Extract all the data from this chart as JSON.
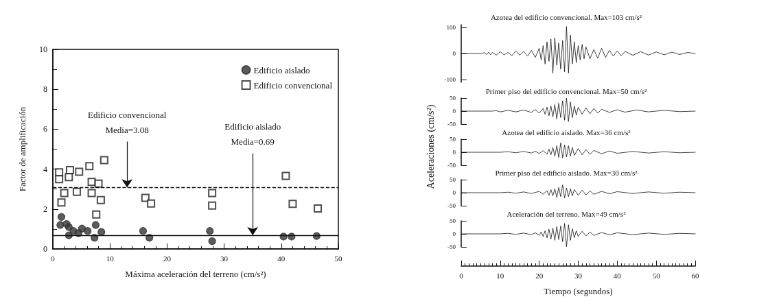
{
  "chart_data": [
    {
      "type": "scatter",
      "xlabel": "Máxima aceleración del terreno (cm/s²)",
      "ylabel": "Factor de amplificación",
      "xlim": [
        0,
        50
      ],
      "xticks": [
        0,
        10,
        20,
        30,
        40,
        50
      ],
      "ylim": [
        0,
        10
      ],
      "yticks": [
        0,
        2,
        4,
        6,
        8,
        10
      ],
      "grid": false,
      "legend": "top right",
      "series": [
        {
          "name": "Edificio aislado",
          "color": "#333333",
          "marker": "circle",
          "x": [
            1.5,
            1.3,
            2.8,
            3.6,
            2.8,
            4.5,
            5.1,
            6.1,
            7.5,
            7.3,
            8.5,
            2.4,
            15.8,
            16.9,
            27.5,
            27.9,
            40.4,
            41.8,
            46.2
          ],
          "values": [
            1.6,
            1.2,
            1.1,
            0.9,
            0.68,
            0.79,
            1.02,
            0.9,
            1.2,
            0.56,
            0.85,
            1.25,
            0.9,
            0.56,
            0.9,
            0.39,
            0.62,
            0.62,
            0.65
          ]
        },
        {
          "name": "Edificio convencional",
          "color": "#222222",
          "marker": "square",
          "x": [
            1.1,
            1.1,
            3.0,
            4.6,
            6.4,
            9.0,
            2.8,
            6.8,
            8.0,
            2.0,
            4.2,
            6.8,
            1.5,
            8.4,
            7.6,
            16.2,
            17.2,
            27.9,
            27.9,
            40.8,
            42.0,
            46.4
          ],
          "values": [
            3.84,
            3.5,
            3.95,
            3.87,
            4.15,
            4.45,
            3.6,
            3.36,
            3.27,
            2.8,
            2.86,
            2.8,
            2.33,
            2.45,
            1.73,
            2.56,
            2.28,
            2.8,
            2.17,
            3.66,
            2.26,
            2.03
          ]
        }
      ],
      "ref_lines": [
        {
          "axis": "y",
          "value": 3.08,
          "line_style": "dashed"
        },
        {
          "axis": "y",
          "value": 0.69,
          "line_style": "solid"
        }
      ],
      "annotations": [
        {
          "text": "Edificio convencional\nMedia=3.08",
          "x": 13,
          "y": 3.08
        },
        {
          "text": "Edificio aislado\nMedia=0.69",
          "x": 35,
          "y": 0.69
        }
      ]
    },
    {
      "type": "line",
      "title": "Azotea del edificio convencional. Max=103 cm/s²",
      "xlim": [
        0,
        60
      ],
      "xticks": [
        0,
        10,
        20,
        30,
        40,
        50,
        60
      ],
      "ylim": [
        -110,
        110
      ],
      "yticks": [
        -100,
        0,
        100
      ],
      "tick_labels": "y",
      "line_style": "solid",
      "marker": "none",
      "grid": false,
      "series": [
        {
          "color": "#111111",
          "x": [
            0,
            5,
            6,
            6.5,
            7,
            7.5,
            8,
            9,
            10,
            11,
            12,
            13,
            14,
            15,
            16,
            17,
            18,
            19,
            20,
            20.5,
            21,
            21.5,
            22,
            22.5,
            23,
            23.5,
            24,
            24.5,
            25,
            25.5,
            26,
            26.5,
            27,
            27.5,
            28,
            28.5,
            29,
            29.5,
            30,
            30.5,
            31,
            31.5,
            32,
            33,
            34,
            35,
            36,
            37,
            38,
            39,
            40,
            41,
            42,
            44,
            46,
            48,
            50,
            52,
            54,
            56,
            58,
            60
          ],
          "values": [
            0,
            0,
            3,
            -4,
            5,
            -5,
            4,
            -6,
            7,
            -5,
            4,
            -8,
            10,
            -6,
            8,
            -10,
            12,
            -15,
            20,
            -25,
            30,
            -40,
            45,
            -30,
            55,
            -75,
            60,
            -45,
            40,
            -60,
            50,
            -70,
            103,
            -75,
            70,
            -40,
            45,
            -35,
            30,
            -25,
            35,
            -20,
            25,
            -20,
            15,
            -18,
            20,
            -15,
            12,
            -10,
            10,
            -8,
            8,
            -7,
            7,
            -6,
            6,
            -5,
            5,
            -4,
            4,
            0
          ]
        }
      ]
    },
    {
      "type": "line",
      "title": "Primer piso del edificio convencional. Max=50 cm/s²",
      "xlim": [
        0,
        60
      ],
      "xticks": [
        0,
        10,
        20,
        30,
        40,
        50,
        60
      ],
      "ylim": [
        -50,
        50
      ],
      "yticks": [
        -50,
        0,
        50
      ],
      "tick_labels": "y",
      "line_style": "solid",
      "marker": "none",
      "grid": false,
      "series": [
        {
          "color": "#111111",
          "x": [
            0,
            8,
            9,
            10,
            12,
            14,
            16,
            18,
            19,
            20,
            21,
            21.5,
            22,
            22.5,
            23,
            23.5,
            24,
            24.5,
            25,
            25.5,
            26,
            26.5,
            27,
            27.5,
            28,
            28.5,
            29,
            29.5,
            30,
            31,
            32,
            33,
            34,
            35,
            36,
            38,
            40,
            42,
            45,
            48,
            52,
            56,
            60
          ],
          "values": [
            0,
            0,
            2,
            -3,
            3,
            -3,
            4,
            -5,
            6,
            -8,
            10,
            -12,
            15,
            -18,
            20,
            -22,
            25,
            -30,
            30,
            -25,
            40,
            -35,
            50,
            -40,
            35,
            -25,
            20,
            -15,
            15,
            -12,
            12,
            -10,
            10,
            -8,
            7,
            -5,
            5,
            -4,
            4,
            -3,
            3,
            -2,
            0
          ]
        }
      ]
    },
    {
      "type": "line",
      "title": "Azotea del edificio aislado. Max=36 cm/s²",
      "ylabel": "Aceleraciones (cm/s²)",
      "xlim": [
        0,
        60
      ],
      "xticks": [
        0,
        10,
        20,
        30,
        40,
        50,
        60
      ],
      "ylim": [
        -50,
        50
      ],
      "yticks": [
        -50,
        0,
        50
      ],
      "tick_labels": "y",
      "line_style": "solid",
      "marker": "none",
      "grid": false,
      "series": [
        {
          "color": "#111111",
          "x": [
            0,
            10,
            12,
            14,
            16,
            18,
            19,
            20,
            21,
            22,
            22.5,
            23,
            23.5,
            24,
            24.5,
            25,
            25.5,
            26,
            26.5,
            27,
            27.5,
            28,
            28.5,
            29,
            30,
            31,
            32,
            33,
            34,
            36,
            38,
            40,
            44,
            48,
            52,
            56,
            60
          ],
          "values": [
            0,
            0,
            2,
            -2,
            3,
            -3,
            4,
            -5,
            6,
            -8,
            12,
            -10,
            18,
            -15,
            25,
            -20,
            36,
            -22,
            28,
            -18,
            25,
            -15,
            18,
            -12,
            14,
            -10,
            10,
            -8,
            7,
            -6,
            5,
            -4,
            3,
            -3,
            2,
            -2,
            0
          ]
        }
      ]
    },
    {
      "type": "line",
      "title": "Primer piso del edificio aislado. Max=30 cm/s²",
      "xlim": [
        0,
        60
      ],
      "xticks": [
        0,
        10,
        20,
        30,
        40,
        50,
        60
      ],
      "ylim": [
        -50,
        50
      ],
      "yticks": [
        -50,
        0,
        50
      ],
      "tick_labels": "y",
      "line_style": "solid",
      "marker": "none",
      "grid": false,
      "series": [
        {
          "color": "#111111",
          "x": [
            0,
            10,
            12,
            14,
            16,
            18,
            20,
            21,
            22,
            22.5,
            23,
            23.5,
            24,
            24.5,
            25,
            25.5,
            26,
            26.5,
            27,
            27.5,
            28,
            28.5,
            29,
            30,
            31,
            32,
            33,
            34,
            36,
            38,
            40,
            44,
            48,
            52,
            56,
            60
          ],
          "values": [
            0,
            0,
            2,
            -2,
            3,
            -3,
            5,
            -6,
            8,
            -10,
            12,
            -12,
            15,
            -18,
            20,
            -15,
            30,
            -20,
            18,
            -15,
            15,
            -12,
            12,
            -10,
            10,
            -8,
            7,
            -6,
            5,
            -4,
            4,
            -3,
            3,
            -2,
            2,
            0
          ]
        }
      ]
    },
    {
      "type": "line",
      "title": "Aceleración del terreno. Max=49 cm/s²",
      "xlabel": "Tiempo (segundos)",
      "xlim": [
        0,
        60
      ],
      "xticks": [
        0,
        10,
        20,
        30,
        40,
        50,
        60
      ],
      "ylim": [
        -50,
        50
      ],
      "yticks": [
        -50,
        0,
        50
      ],
      "line_style": "solid",
      "marker": "none",
      "grid": false,
      "series": [
        {
          "color": "#111111",
          "x": [
            0,
            10,
            12,
            14,
            16,
            18,
            19,
            20,
            20.5,
            21,
            21.5,
            22,
            22.5,
            23,
            23.5,
            24,
            24.5,
            25,
            25.5,
            26,
            26.5,
            27,
            27.5,
            28,
            28.5,
            29,
            29.5,
            30,
            31,
            32,
            33,
            34,
            36,
            38,
            40,
            44,
            48,
            52,
            56,
            60
          ],
          "values": [
            0,
            0,
            2,
            -2,
            3,
            -3,
            4,
            -6,
            8,
            -10,
            12,
            -15,
            18,
            -20,
            22,
            -25,
            28,
            -22,
            30,
            -30,
            40,
            -49,
            35,
            -25,
            20,
            -15,
            12,
            -10,
            10,
            -8,
            7,
            -6,
            5,
            -4,
            4,
            -3,
            3,
            -2,
            2,
            0
          ]
        }
      ]
    }
  ]
}
